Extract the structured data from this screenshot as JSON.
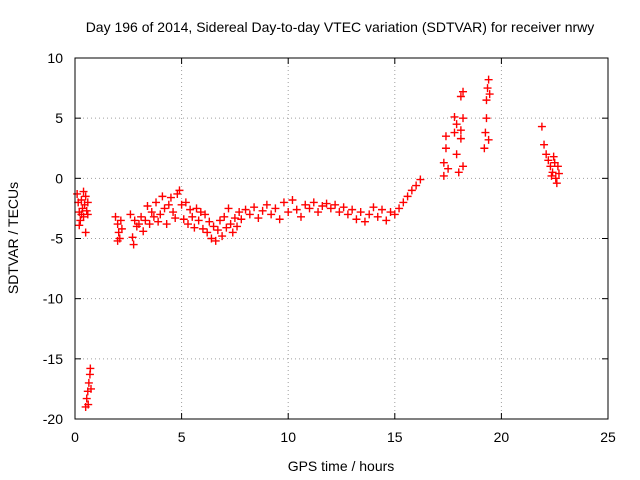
{
  "chart_data": {
    "type": "scatter",
    "title": "Day 196 of 2014, Sidereal Day-to-day VTEC variation (SDTVAR) for receiver nrwy",
    "xlabel": "GPS time / hours",
    "ylabel": "SDTVAR / TECUs",
    "xlim": [
      0,
      25
    ],
    "ylim": [
      -20,
      10
    ],
    "xticks": [
      0,
      5,
      10,
      15,
      20,
      25
    ],
    "yticks": [
      -20,
      -15,
      -10,
      -5,
      0,
      5,
      10
    ],
    "grid": true,
    "legend": "none",
    "marker": "+",
    "series": [
      {
        "name": "SDTVAR",
        "color": "#ff0000",
        "points": [
          [
            0.1,
            -1.3
          ],
          [
            0.15,
            -2.0
          ],
          [
            0.2,
            -2.8
          ],
          [
            0.25,
            -3.5
          ],
          [
            0.3,
            -1.8
          ],
          [
            0.35,
            -2.5
          ],
          [
            0.4,
            -3.2
          ],
          [
            0.45,
            -2.2
          ],
          [
            0.5,
            -1.5
          ],
          [
            0.55,
            -2.7
          ],
          [
            0.6,
            -3.0
          ],
          [
            0.2,
            -3.9
          ],
          [
            0.4,
            -1.1
          ],
          [
            0.5,
            -4.5
          ],
          [
            0.3,
            -3.0
          ],
          [
            0.6,
            -2.0
          ],
          [
            0.5,
            -19.0
          ],
          [
            0.55,
            -18.3
          ],
          [
            0.6,
            -17.7
          ],
          [
            0.65,
            -17.0
          ],
          [
            0.7,
            -16.3
          ],
          [
            0.72,
            -15.8
          ],
          [
            0.75,
            -17.5
          ],
          [
            0.62,
            -18.8
          ],
          [
            1.9,
            -3.2
          ],
          [
            2.0,
            -3.8
          ],
          [
            2.05,
            -4.5
          ],
          [
            2.1,
            -5.0
          ],
          [
            2.15,
            -3.5
          ],
          [
            2.2,
            -4.2
          ],
          [
            2.0,
            -5.2
          ],
          [
            2.6,
            -3.0
          ],
          [
            2.7,
            -4.9
          ],
          [
            2.75,
            -5.5
          ],
          [
            2.8,
            -3.5
          ],
          [
            2.9,
            -4.0
          ],
          [
            3.0,
            -3.8
          ],
          [
            3.1,
            -3.2
          ],
          [
            3.2,
            -4.4
          ],
          [
            3.3,
            -3.5
          ],
          [
            3.4,
            -2.3
          ],
          [
            3.5,
            -3.8
          ],
          [
            3.6,
            -2.8
          ],
          [
            3.7,
            -3.2
          ],
          [
            3.8,
            -2.0
          ],
          [
            3.9,
            -3.6
          ],
          [
            4.0,
            -3.0
          ],
          [
            4.1,
            -1.5
          ],
          [
            4.2,
            -2.5
          ],
          [
            4.3,
            -3.8
          ],
          [
            4.4,
            -2.2
          ],
          [
            4.5,
            -1.6
          ],
          [
            4.6,
            -2.8
          ],
          [
            4.7,
            -3.3
          ],
          [
            4.8,
            -1.3
          ],
          [
            4.9,
            -1.0
          ],
          [
            5.0,
            -2.2
          ],
          [
            5.1,
            -3.4
          ],
          [
            5.2,
            -2.0
          ],
          [
            5.3,
            -3.8
          ],
          [
            5.4,
            -2.6
          ],
          [
            5.5,
            -3.2
          ],
          [
            5.6,
            -4.1
          ],
          [
            5.7,
            -2.5
          ],
          [
            5.8,
            -3.5
          ],
          [
            5.9,
            -2.8
          ],
          [
            6.0,
            -4.2
          ],
          [
            6.1,
            -3.0
          ],
          [
            6.2,
            -4.5
          ],
          [
            6.3,
            -3.6
          ],
          [
            6.4,
            -5.0
          ],
          [
            6.5,
            -4.0
          ],
          [
            6.6,
            -5.2
          ],
          [
            6.7,
            -4.3
          ],
          [
            6.8,
            -3.5
          ],
          [
            6.9,
            -4.8
          ],
          [
            7.0,
            -3.2
          ],
          [
            7.1,
            -4.1
          ],
          [
            7.2,
            -2.5
          ],
          [
            7.3,
            -3.8
          ],
          [
            7.4,
            -4.5
          ],
          [
            7.5,
            -3.3
          ],
          [
            7.6,
            -4.0
          ],
          [
            7.7,
            -2.8
          ],
          [
            7.8,
            -3.4
          ],
          [
            8.0,
            -2.6
          ],
          [
            8.2,
            -3.0
          ],
          [
            8.4,
            -2.4
          ],
          [
            8.6,
            -3.3
          ],
          [
            8.8,
            -2.7
          ],
          [
            9.0,
            -2.2
          ],
          [
            9.2,
            -3.0
          ],
          [
            9.4,
            -2.5
          ],
          [
            9.6,
            -3.4
          ],
          [
            9.8,
            -2.0
          ],
          [
            10.0,
            -2.8
          ],
          [
            10.2,
            -1.8
          ],
          [
            10.4,
            -2.6
          ],
          [
            10.6,
            -3.2
          ],
          [
            10.8,
            -2.2
          ],
          [
            11.0,
            -2.5
          ],
          [
            11.2,
            -2.0
          ],
          [
            11.4,
            -2.8
          ],
          [
            11.6,
            -2.3
          ],
          [
            11.8,
            -2.1
          ],
          [
            12.0,
            -2.5
          ],
          [
            12.2,
            -2.2
          ],
          [
            12.4,
            -2.8
          ],
          [
            12.6,
            -2.4
          ],
          [
            12.8,
            -3.0
          ],
          [
            13.0,
            -2.6
          ],
          [
            13.2,
            -3.4
          ],
          [
            13.4,
            -2.8
          ],
          [
            13.6,
            -3.6
          ],
          [
            13.8,
            -3.0
          ],
          [
            14.0,
            -2.4
          ],
          [
            14.2,
            -3.2
          ],
          [
            14.4,
            -2.6
          ],
          [
            14.6,
            -3.5
          ],
          [
            14.8,
            -2.8
          ],
          [
            15.0,
            -3.0
          ],
          [
            15.2,
            -2.5
          ],
          [
            15.4,
            -2.0
          ],
          [
            15.6,
            -1.5
          ],
          [
            15.8,
            -1.0
          ],
          [
            16.0,
            -0.6
          ],
          [
            16.2,
            -0.1
          ],
          [
            17.3,
            0.2
          ],
          [
            17.3,
            1.3
          ],
          [
            17.4,
            2.5
          ],
          [
            17.4,
            3.5
          ],
          [
            17.5,
            0.8
          ],
          [
            17.8,
            3.8
          ],
          [
            17.8,
            5.1
          ],
          [
            17.9,
            4.5
          ],
          [
            17.9,
            2.0
          ],
          [
            18.1,
            4.0
          ],
          [
            18.1,
            6.8
          ],
          [
            18.2,
            7.2
          ],
          [
            18.2,
            5.0
          ],
          [
            18.2,
            1.0
          ],
          [
            18.0,
            0.5
          ],
          [
            18.1,
            3.3
          ],
          [
            19.2,
            2.5
          ],
          [
            19.25,
            3.8
          ],
          [
            19.3,
            5.0
          ],
          [
            19.3,
            6.5
          ],
          [
            19.35,
            7.5
          ],
          [
            19.4,
            8.2
          ],
          [
            19.4,
            3.2
          ],
          [
            19.45,
            7.0
          ],
          [
            21.9,
            4.3
          ],
          [
            22.0,
            2.8
          ],
          [
            22.1,
            2.0
          ],
          [
            22.2,
            1.5
          ],
          [
            22.3,
            1.0
          ],
          [
            22.35,
            0.2
          ],
          [
            22.4,
            0.5
          ],
          [
            22.45,
            1.8
          ],
          [
            22.5,
            1.3
          ],
          [
            22.55,
            0.0
          ],
          [
            22.6,
            -0.4
          ],
          [
            22.65,
            1.0
          ],
          [
            22.7,
            0.4
          ]
        ]
      }
    ]
  }
}
